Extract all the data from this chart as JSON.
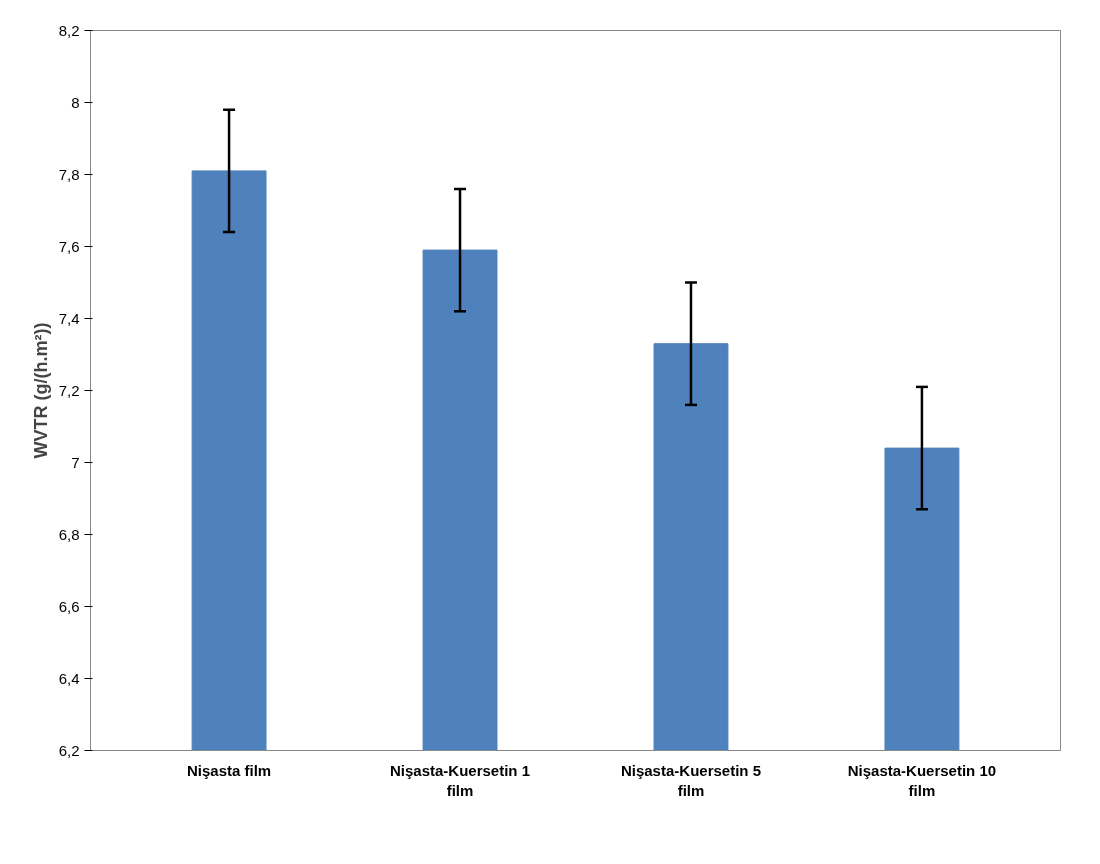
{
  "chart_data": {
    "type": "bar",
    "ylabel": "WVTR (g/(h.m²))",
    "categories": [
      "Nişasta film",
      "Nişasta-Kuersetin 1 film",
      "Nişasta-Kuersetin 5 film",
      "Nişasta-Kuersetin 10 film"
    ],
    "values": [
      7.81,
      7.59,
      7.33,
      7.04
    ],
    "errors": [
      0.17,
      0.17,
      0.17,
      0.17
    ],
    "color": "#4f81bd",
    "ylim": [
      6.2,
      8.2
    ],
    "yticks": [
      {
        "value": 6.2,
        "label": "6,2"
      },
      {
        "value": 6.4,
        "label": "6,4"
      },
      {
        "value": 6.6,
        "label": "6,6"
      },
      {
        "value": 6.8,
        "label": "6,8"
      },
      7,
      {
        "value": 7.2,
        "label": "7,2"
      },
      {
        "value": 7.4,
        "label": "7,4"
      },
      {
        "value": 7.6,
        "label": "7,6"
      },
      {
        "value": 7.8,
        "label": "7,8"
      },
      8,
      {
        "value": 8.2,
        "label": "8,2"
      }
    ],
    "grid": false
  }
}
